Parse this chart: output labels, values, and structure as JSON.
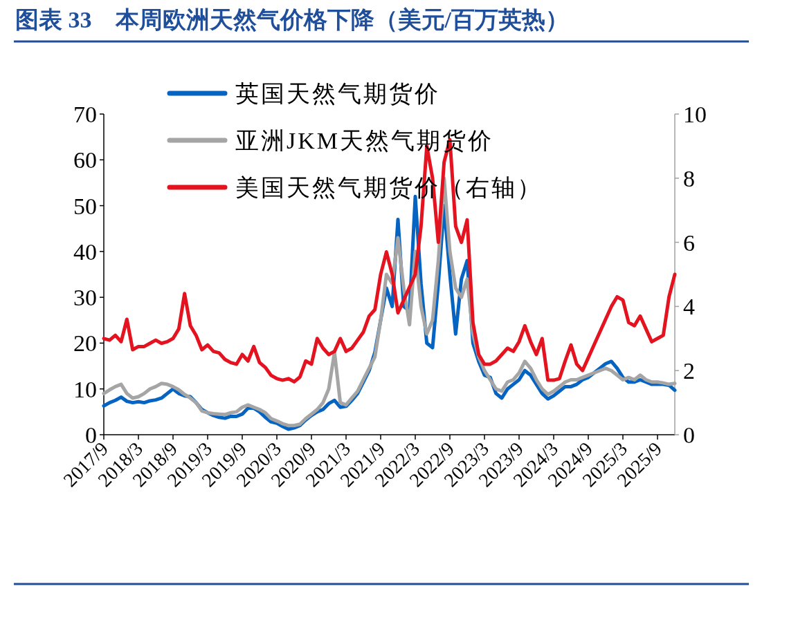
{
  "chart_data": {
    "type": "line",
    "title": "图表 33　本周欧洲天然气价格下降（美元/百万英热）",
    "x": [
      "2017-09",
      "2017-10",
      "2017-11",
      "2017-12",
      "2018-01",
      "2018-02",
      "2018-03",
      "2018-04",
      "2018-05",
      "2018-06",
      "2018-07",
      "2018-08",
      "2018-09",
      "2018-10",
      "2018-11",
      "2018-12",
      "2019-01",
      "2019-02",
      "2019-03",
      "2019-04",
      "2019-05",
      "2019-06",
      "2019-07",
      "2019-08",
      "2019-09",
      "2019-10",
      "2019-11",
      "2019-12",
      "2020-01",
      "2020-02",
      "2020-03",
      "2020-04",
      "2020-05",
      "2020-06",
      "2020-07",
      "2020-08",
      "2020-09",
      "2020-10",
      "2020-11",
      "2020-12",
      "2021-01",
      "2021-02",
      "2021-03",
      "2021-04",
      "2021-05",
      "2021-06",
      "2021-07",
      "2021-08",
      "2021-09",
      "2021-10",
      "2021-11",
      "2021-12",
      "2022-01",
      "2022-02",
      "2022-03",
      "2022-04",
      "2022-05",
      "2022-06",
      "2022-07",
      "2022-08",
      "2022-09",
      "2022-10",
      "2022-11",
      "2022-12",
      "2023-01",
      "2023-02",
      "2023-03",
      "2023-04",
      "2023-05",
      "2023-06",
      "2023-07",
      "2023-08",
      "2023-09",
      "2023-10",
      "2023-11",
      "2023-12",
      "2024-01",
      "2024-02",
      "2024-03",
      "2024-04",
      "2024-05",
      "2024-06",
      "2024-07",
      "2024-08",
      "2024-09",
      "2024-10",
      "2024-11",
      "2024-12",
      "2025-01",
      "2025-02",
      "2025-03",
      "2025-04",
      "2025-05",
      "2025-06",
      "2025-07",
      "2025-08",
      "2025-09",
      "2025-10",
      "2025-11",
      "2025-12"
    ],
    "series": [
      {
        "name": "英国天然气期货价",
        "color": "#0563c1",
        "axis": "y",
        "values": [
          6.3,
          7,
          7.5,
          8.2,
          7.3,
          7,
          7.2,
          7,
          7.4,
          7.6,
          8,
          9,
          10,
          9,
          8.5,
          8.3,
          7,
          5.5,
          4.8,
          4.2,
          3.8,
          3.6,
          4,
          4,
          4.5,
          5.8,
          5.8,
          5,
          3.8,
          2.8,
          2.5,
          1.8,
          1.2,
          1.5,
          2,
          3.2,
          4.2,
          5,
          5.5,
          6.8,
          7.5,
          6,
          6.2,
          7.5,
          9,
          11.5,
          14,
          18,
          25,
          32,
          28,
          47,
          28,
          27,
          52,
          33,
          20,
          19,
          33,
          50,
          35,
          22,
          34,
          38,
          20,
          16,
          13,
          12.5,
          9,
          8,
          10,
          11,
          12,
          14,
          13,
          11,
          9,
          7.8,
          8.5,
          9.5,
          10.5,
          10.5,
          11,
          12,
          12.5,
          13.5,
          14.5,
          15.5,
          16,
          14.5,
          12.5,
          11.5,
          11.5,
          12,
          11.5,
          11,
          11,
          11,
          10.8,
          9.7
        ]
      },
      {
        "name": "亚洲JKM天然气期货价",
        "color": "#a5a5a5",
        "axis": "y",
        "values": [
          9,
          9.8,
          10.5,
          11,
          9,
          8,
          8.3,
          9,
          10,
          10.5,
          11.2,
          11,
          10.5,
          9.8,
          8.8,
          8,
          7,
          5.2,
          4.8,
          4.6,
          4.5,
          4.4,
          4.8,
          5,
          6,
          6.5,
          6,
          5.5,
          4.8,
          3.5,
          3,
          2.4,
          2,
          2,
          2.3,
          3.5,
          4.5,
          5.5,
          7,
          10,
          18,
          7,
          6.5,
          8,
          9.5,
          12,
          14.5,
          17,
          25,
          35,
          33,
          43,
          32,
          24,
          40,
          28,
          22,
          25,
          38,
          56,
          40,
          32,
          30,
          34,
          22,
          17,
          14,
          12,
          10,
          9.5,
          11.5,
          12,
          13.5,
          16,
          14.5,
          12,
          10,
          8.8,
          9.5,
          10.5,
          11.5,
          12,
          12,
          12.5,
          13,
          13.5,
          14,
          14.5,
          14,
          13,
          12,
          12.5,
          12,
          13,
          12,
          11.5,
          11.5,
          11.3,
          11,
          11.2
        ]
      },
      {
        "name": "美国天然气期货价（右轴）",
        "color": "#e3141f",
        "axis": "y2",
        "values": [
          3.0,
          2.95,
          3.1,
          2.9,
          3.6,
          2.65,
          2.75,
          2.75,
          2.85,
          2.95,
          2.85,
          2.9,
          3.0,
          3.3,
          4.4,
          3.4,
          3.1,
          2.65,
          2.8,
          2.6,
          2.55,
          2.35,
          2.25,
          2.2,
          2.5,
          2.3,
          2.75,
          2.25,
          2.1,
          1.85,
          1.75,
          1.7,
          1.75,
          1.65,
          1.8,
          2.3,
          2.2,
          3.0,
          2.7,
          2.5,
          2.6,
          3.0,
          2.6,
          2.7,
          2.95,
          3.2,
          3.7,
          3.9,
          5.0,
          5.7,
          5.0,
          3.8,
          4.2,
          4.6,
          5.0,
          6.5,
          9.0,
          8.0,
          6.0,
          8.5,
          9.2,
          6.5,
          6.0,
          6.7,
          3.5,
          2.5,
          2.2,
          2.2,
          2.3,
          2.5,
          2.7,
          2.6,
          2.9,
          3.4,
          2.9,
          2.5,
          3.0,
          1.7,
          1.7,
          1.75,
          2.3,
          2.8,
          2.2,
          2.0,
          2.4,
          2.8,
          3.2,
          3.6,
          4.0,
          4.3,
          4.2,
          3.5,
          3.4,
          3.7,
          3.3,
          2.9,
          3.0,
          3.1,
          4.3,
          5.0
        ]
      }
    ],
    "xlim": [
      "2017-09",
      "2025-12"
    ],
    "xticks": [
      {
        "value": "2017-09",
        "label": "2017/9"
      },
      {
        "value": "2018-03",
        "label": "2018/3"
      },
      {
        "value": "2018-09",
        "label": "2018/9"
      },
      {
        "value": "2019-03",
        "label": "2019/3"
      },
      {
        "value": "2019-09",
        "label": "2019/9"
      },
      {
        "value": "2020-03",
        "label": "2020/3"
      },
      {
        "value": "2020-09",
        "label": "2020/9"
      },
      {
        "value": "2021-03",
        "label": "2021/3"
      },
      {
        "value": "2021-09",
        "label": "2021/9"
      },
      {
        "value": "2022-03",
        "label": "2022/3"
      },
      {
        "value": "2022-09",
        "label": "2022/9"
      },
      {
        "value": "2023-03",
        "label": "2023/3"
      },
      {
        "value": "2023-09",
        "label": "2023/9"
      },
      {
        "value": "2024-03",
        "label": "2024/3"
      },
      {
        "value": "2024-09",
        "label": "2024/9"
      },
      {
        "value": "2025-03",
        "label": "2025/3"
      },
      {
        "value": "2025-09",
        "label": "2025/9"
      }
    ],
    "ylim": [
      0,
      70
    ],
    "yticks": [
      0,
      10,
      20,
      30,
      40,
      50,
      60,
      70
    ],
    "y2lim": [
      0,
      10
    ],
    "y2ticks": [
      0,
      2,
      4,
      6,
      8,
      10
    ],
    "legend": "top left"
  }
}
